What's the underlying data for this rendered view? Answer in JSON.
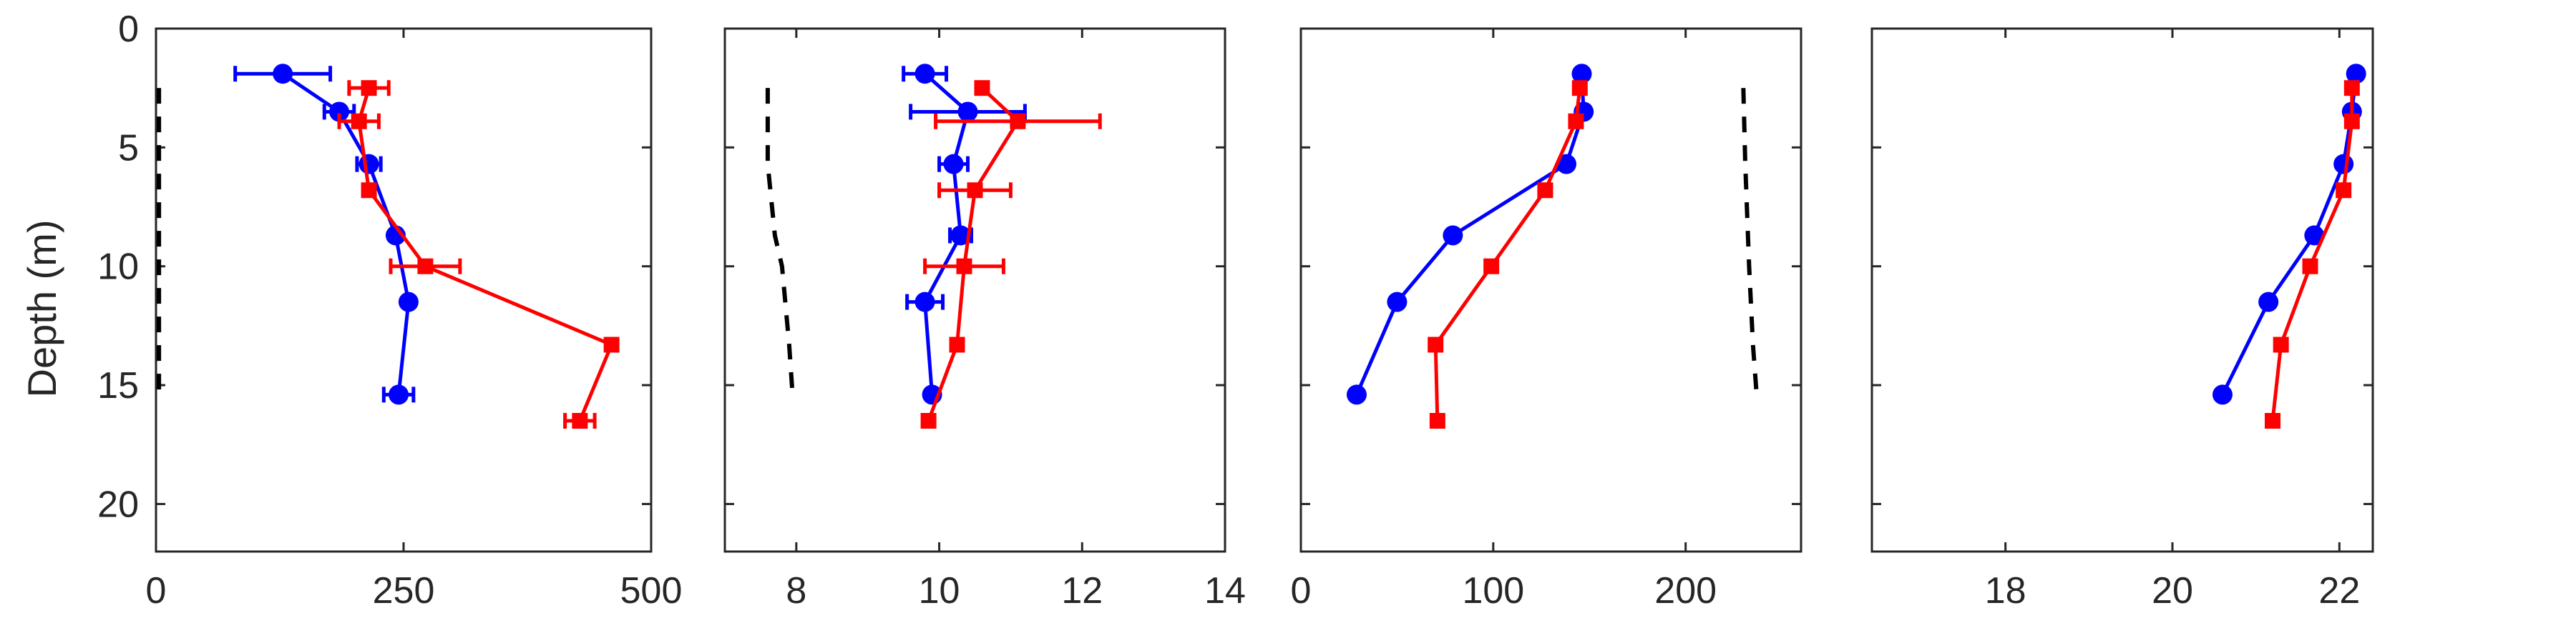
{
  "chart_data": {
    "type": "scatter",
    "ylabel": "Depth (m)",
    "ylim": [
      0,
      22
    ],
    "yticks": [
      0,
      5,
      10,
      15,
      20
    ],
    "y_reversed": true,
    "colors": {
      "blue": "#0000ff",
      "red": "#ff0000",
      "reference": "#000000"
    },
    "panels": [
      {
        "xlim": [
          0,
          500
        ],
        "xticks": [
          0,
          250,
          500
        ],
        "reference": {
          "x": [
            3,
            3
          ],
          "y": [
            2.5,
            15.5
          ]
        },
        "blue": {
          "y": [
            1.9,
            3.5,
            5.7,
            8.7,
            11.5,
            15.4
          ],
          "x": [
            128,
            185,
            215,
            242,
            255,
            245
          ],
          "xerr": [
            48,
            15,
            12,
            0,
            0,
            15
          ]
        },
        "red": {
          "y": [
            2.5,
            3.9,
            6.8,
            10.0,
            13.3,
            16.5
          ],
          "x": [
            215,
            205,
            215,
            272,
            460,
            428
          ],
          "xerr": [
            20,
            20,
            0,
            35,
            0,
            15
          ]
        }
      },
      {
        "xlim": [
          7,
          14
        ],
        "xticks": [
          8,
          10,
          12,
          14
        ],
        "reference": {
          "x": [
            7.6,
            7.6,
            7.7,
            7.8,
            7.9,
            7.95
          ],
          "y": [
            2.5,
            5.7,
            8.7,
            10.0,
            13.3,
            15.5
          ]
        },
        "blue": {
          "y": [
            1.9,
            3.5,
            5.7,
            8.7,
            11.5,
            15.4
          ],
          "x": [
            9.8,
            10.4,
            10.2,
            10.3,
            9.8,
            9.9
          ],
          "xerr": [
            0.3,
            0.8,
            0.2,
            0.15,
            0.25,
            0
          ]
        },
        "red": {
          "y": [
            2.5,
            3.9,
            6.8,
            10.0,
            13.3,
            16.5
          ],
          "x": [
            10.6,
            11.1,
            10.5,
            10.35,
            10.25,
            9.85
          ],
          "xerr": [
            0,
            1.15,
            0.5,
            0.55,
            0,
            0
          ]
        }
      },
      {
        "xlim": [
          0,
          260
        ],
        "xticks": [
          0,
          100,
          200
        ],
        "reference": {
          "x": [
            230,
            231,
            233,
            235,
            237
          ],
          "y": [
            2.5,
            5.7,
            10.0,
            13.3,
            15.5
          ]
        },
        "blue": {
          "y": [
            1.9,
            3.5,
            5.7,
            8.7,
            11.5,
            15.4
          ],
          "x": [
            146,
            147,
            138,
            79,
            50,
            29
          ],
          "xerr": [
            0,
            0,
            0,
            0,
            0,
            0
          ]
        },
        "red": {
          "y": [
            2.5,
            3.9,
            6.8,
            10.0,
            13.3,
            16.5
          ],
          "x": [
            145,
            143,
            127,
            99,
            70,
            71
          ],
          "xerr": [
            0,
            0,
            0,
            0,
            0,
            0
          ]
        }
      },
      {
        "xlim": [
          16.4,
          22.4
        ],
        "xticks": [
          18,
          20,
          22
        ],
        "reference": null,
        "blue": {
          "y": [
            1.9,
            3.5,
            5.7,
            8.7,
            11.5,
            15.4
          ],
          "x": [
            22.2,
            22.15,
            22.05,
            21.7,
            21.15,
            20.6
          ],
          "xerr": [
            0,
            0,
            0,
            0,
            0,
            0
          ]
        },
        "red": {
          "y": [
            2.5,
            3.9,
            6.8,
            10.0,
            13.3,
            16.5
          ],
          "x": [
            22.15,
            22.15,
            22.05,
            21.65,
            21.3,
            21.2
          ],
          "xerr": [
            0,
            0,
            0,
            0,
            0,
            0
          ]
        }
      }
    ]
  }
}
